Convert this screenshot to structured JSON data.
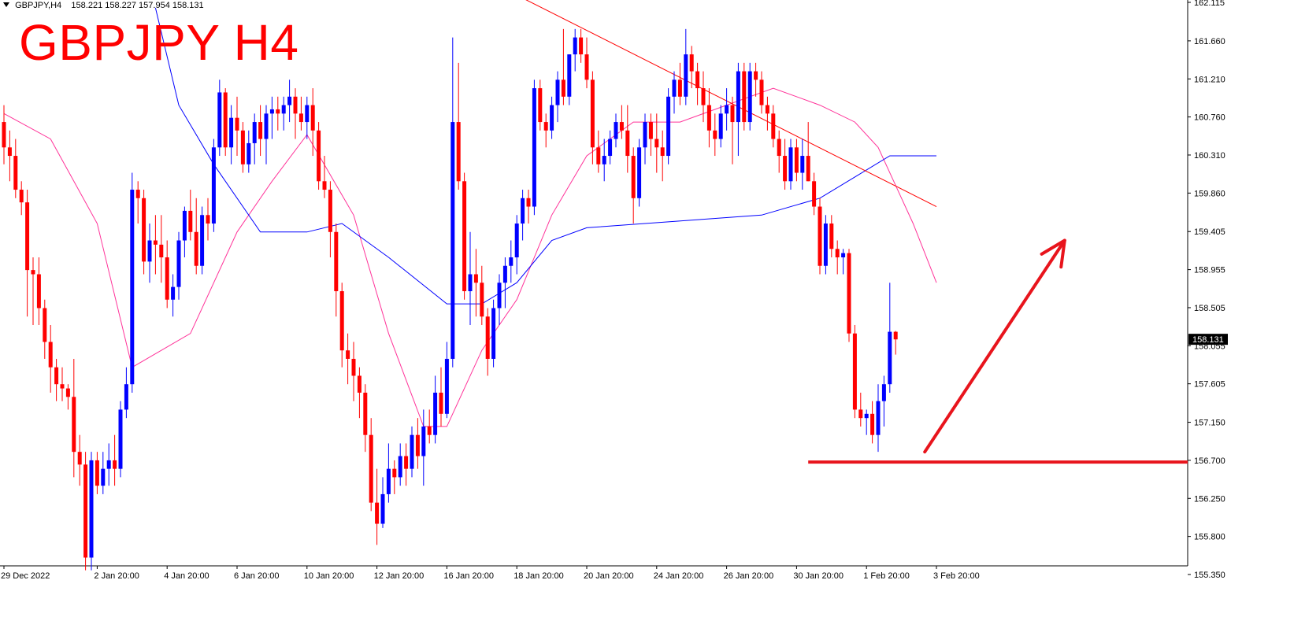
{
  "header": {
    "symbol_info": "GBPJPY,H4",
    "ohlc": "158.221 158.227 157.954 158.131",
    "title": "GBPJPY H4"
  },
  "colors": {
    "bull": "#0000ff",
    "bear": "#ff0000",
    "ma_fast": "#ff3399",
    "ma_slow": "#0000ff",
    "trendline": "#ff0000",
    "annotation": "#e8141c",
    "grid": "#000000"
  },
  "chart_data": {
    "type": "candlestick",
    "timeframe": "H4",
    "y_ticks": [
      "155.350",
      "155.800",
      "156.250",
      "156.700",
      "157.150",
      "157.605",
      "158.055",
      "158.505",
      "158.955",
      "159.405",
      "159.860",
      "160.310",
      "160.760",
      "161.210",
      "161.660",
      "162.115"
    ],
    "ylim": [
      155.2,
      162.2
    ],
    "x_ticks": [
      "29 Dec 2022",
      "2 Jan 20:00",
      "4 Jan 20:00",
      "6 Jan 20:00",
      "10 Jan 20:00",
      "12 Jan 20:00",
      "16 Jan 20:00",
      "18 Jan 20:00",
      "20 Jan 20:00",
      "24 Jan 20:00",
      "26 Jan 20:00",
      "30 Jan 20:00",
      "1 Feb 20:00",
      "3 Feb 20:00"
    ],
    "current_price": "158.131",
    "horizontal_level": 156.68,
    "candles": [
      [
        160.7,
        160.9,
        160.2,
        160.4
      ],
      [
        160.4,
        160.6,
        160.0,
        160.3
      ],
      [
        160.3,
        160.5,
        159.8,
        159.9
      ],
      [
        159.9,
        160.0,
        159.6,
        159.75
      ],
      [
        159.75,
        159.9,
        158.4,
        158.95
      ],
      [
        158.95,
        159.1,
        158.3,
        158.9
      ],
      [
        158.9,
        159.1,
        158.3,
        158.5
      ],
      [
        158.5,
        158.6,
        157.9,
        158.1
      ],
      [
        158.1,
        158.3,
        157.5,
        157.8
      ],
      [
        157.8,
        157.9,
        157.4,
        157.6
      ],
      [
        157.6,
        157.8,
        157.4,
        157.55
      ],
      [
        157.55,
        157.6,
        157.3,
        157.45
      ],
      [
        157.45,
        157.9,
        156.5,
        156.8
      ],
      [
        156.8,
        157.0,
        156.4,
        156.65
      ],
      [
        156.65,
        156.8,
        155.4,
        155.55
      ],
      [
        155.55,
        156.8,
        155.4,
        156.7
      ],
      [
        156.7,
        156.8,
        156.3,
        156.4
      ],
      [
        156.4,
        156.8,
        156.3,
        156.6
      ],
      [
        156.6,
        156.9,
        156.4,
        156.7
      ],
      [
        156.7,
        157.0,
        156.4,
        156.6
      ],
      [
        156.6,
        157.4,
        156.5,
        157.3
      ],
      [
        157.3,
        157.8,
        157.2,
        157.6
      ],
      [
        157.6,
        160.1,
        157.5,
        159.9
      ],
      [
        159.9,
        160.0,
        159.5,
        159.8
      ],
      [
        159.8,
        159.9,
        158.9,
        159.05
      ],
      [
        159.05,
        159.5,
        158.8,
        159.3
      ],
      [
        159.3,
        159.6,
        158.9,
        159.25
      ],
      [
        159.25,
        159.6,
        158.8,
        159.1
      ],
      [
        159.1,
        159.3,
        158.5,
        158.6
      ],
      [
        158.6,
        158.9,
        158.4,
        158.75
      ],
      [
        158.75,
        159.4,
        158.6,
        159.3
      ],
      [
        159.3,
        159.7,
        159.1,
        159.65
      ],
      [
        159.65,
        159.9,
        159.3,
        159.4
      ],
      [
        159.4,
        159.8,
        158.9,
        159.0
      ],
      [
        159.0,
        159.7,
        158.9,
        159.6
      ],
      [
        159.6,
        159.8,
        159.3,
        159.5
      ],
      [
        159.5,
        160.5,
        159.4,
        160.4
      ],
      [
        160.4,
        161.2,
        160.3,
        161.05
      ],
      [
        161.05,
        161.1,
        160.3,
        160.4
      ],
      [
        160.4,
        160.9,
        160.2,
        160.75
      ],
      [
        160.75,
        161.0,
        160.3,
        160.6
      ],
      [
        160.6,
        160.7,
        160.1,
        160.2
      ],
      [
        160.2,
        160.6,
        160.1,
        160.45
      ],
      [
        160.45,
        160.8,
        160.2,
        160.7
      ],
      [
        160.7,
        160.9,
        160.3,
        160.5
      ],
      [
        160.5,
        160.9,
        160.2,
        160.8
      ],
      [
        160.8,
        161.0,
        160.5,
        160.85
      ],
      [
        160.85,
        161.0,
        160.6,
        160.8
      ],
      [
        160.8,
        161.0,
        160.6,
        160.9
      ],
      [
        160.9,
        161.2,
        160.7,
        161.0
      ],
      [
        161.0,
        161.1,
        160.5,
        160.8
      ],
      [
        160.8,
        161.0,
        160.6,
        160.7
      ],
      [
        160.7,
        161.0,
        160.5,
        160.9
      ],
      [
        160.9,
        161.1,
        160.3,
        160.6
      ],
      [
        160.6,
        160.7,
        159.9,
        160.0
      ],
      [
        160.0,
        160.3,
        159.8,
        159.9
      ],
      [
        159.9,
        160.0,
        159.1,
        159.4
      ],
      [
        159.4,
        159.5,
        158.4,
        158.7
      ],
      [
        158.7,
        158.8,
        157.8,
        158.0
      ],
      [
        158.0,
        158.2,
        157.6,
        157.9
      ],
      [
        157.9,
        158.1,
        157.4,
        157.7
      ],
      [
        157.7,
        157.8,
        157.2,
        157.5
      ],
      [
        157.5,
        157.6,
        156.8,
        157.0
      ],
      [
        157.0,
        157.2,
        156.1,
        156.2
      ],
      [
        156.2,
        156.6,
        155.7,
        155.95
      ],
      [
        155.95,
        156.5,
        155.9,
        156.3
      ],
      [
        156.3,
        156.9,
        156.2,
        156.6
      ],
      [
        156.6,
        156.7,
        156.3,
        156.5
      ],
      [
        156.5,
        156.9,
        156.4,
        156.75
      ],
      [
        156.75,
        156.9,
        156.4,
        156.6
      ],
      [
        156.6,
        157.1,
        156.5,
        157.0
      ],
      [
        157.0,
        157.2,
        156.6,
        156.75
      ],
      [
        156.75,
        157.3,
        156.4,
        157.1
      ],
      [
        157.1,
        157.3,
        156.9,
        157.0
      ],
      [
        157.0,
        157.7,
        156.9,
        157.5
      ],
      [
        157.5,
        157.8,
        157.1,
        157.25
      ],
      [
        157.25,
        158.1,
        157.2,
        157.9
      ],
      [
        157.9,
        161.7,
        157.8,
        160.7
      ],
      [
        160.7,
        161.4,
        159.9,
        160.0
      ],
      [
        160.0,
        160.1,
        158.6,
        158.7
      ],
      [
        158.7,
        159.4,
        158.3,
        158.9
      ],
      [
        158.9,
        159.2,
        158.4,
        158.8
      ],
      [
        158.8,
        159.0,
        158.3,
        158.4
      ],
      [
        158.4,
        158.5,
        157.7,
        157.9
      ],
      [
        157.9,
        158.6,
        157.8,
        158.5
      ],
      [
        158.5,
        158.9,
        158.3,
        158.8
      ],
      [
        158.8,
        159.1,
        158.5,
        159.0
      ],
      [
        159.0,
        159.3,
        158.8,
        159.1
      ],
      [
        159.1,
        159.6,
        158.9,
        159.5
      ],
      [
        159.5,
        159.9,
        159.3,
        159.8
      ],
      [
        159.8,
        159.9,
        159.5,
        159.7
      ],
      [
        159.7,
        161.2,
        159.6,
        161.1
      ],
      [
        161.1,
        161.2,
        160.6,
        160.7
      ],
      [
        160.7,
        160.8,
        160.4,
        160.6
      ],
      [
        160.6,
        161.0,
        160.5,
        160.9
      ],
      [
        160.9,
        161.3,
        160.7,
        161.2
      ],
      [
        161.2,
        161.8,
        160.9,
        161.0
      ],
      [
        161.0,
        161.5,
        160.9,
        161.5
      ],
      [
        161.5,
        161.8,
        161.3,
        161.7
      ],
      [
        161.7,
        161.8,
        161.4,
        161.5
      ],
      [
        161.5,
        161.7,
        161.1,
        161.2
      ],
      [
        161.2,
        161.3,
        160.2,
        160.4
      ],
      [
        160.4,
        160.6,
        160.1,
        160.2
      ],
      [
        160.2,
        160.5,
        160.0,
        160.3
      ],
      [
        160.3,
        160.6,
        160.2,
        160.5
      ],
      [
        160.5,
        160.8,
        160.4,
        160.7
      ],
      [
        160.7,
        160.9,
        160.5,
        160.6
      ],
      [
        160.6,
        160.9,
        160.1,
        160.3
      ],
      [
        160.3,
        160.4,
        159.5,
        159.8
      ],
      [
        159.8,
        160.5,
        159.7,
        160.4
      ],
      [
        160.4,
        160.8,
        160.2,
        160.7
      ],
      [
        160.7,
        160.8,
        160.3,
        160.5
      ],
      [
        160.5,
        160.8,
        160.1,
        160.4
      ],
      [
        160.4,
        160.6,
        160.0,
        160.3
      ],
      [
        160.3,
        161.1,
        160.2,
        161.0
      ],
      [
        161.0,
        161.3,
        160.8,
        161.2
      ],
      [
        161.2,
        161.4,
        160.9,
        161.0
      ],
      [
        161.0,
        161.8,
        160.9,
        161.5
      ],
      [
        161.5,
        161.6,
        161.1,
        161.3
      ],
      [
        161.3,
        161.4,
        160.9,
        161.1
      ],
      [
        161.1,
        161.3,
        160.7,
        160.9
      ],
      [
        160.9,
        161.1,
        160.4,
        160.6
      ],
      [
        160.6,
        160.8,
        160.3,
        160.5
      ],
      [
        160.5,
        160.9,
        160.4,
        160.8
      ],
      [
        160.8,
        161.1,
        160.6,
        160.9
      ],
      [
        160.9,
        161.0,
        160.2,
        160.7
      ],
      [
        160.7,
        161.4,
        160.3,
        161.3
      ],
      [
        161.3,
        161.4,
        160.6,
        160.7
      ],
      [
        160.7,
        161.4,
        160.6,
        161.3
      ],
      [
        161.3,
        161.4,
        161.0,
        161.2
      ],
      [
        161.2,
        161.3,
        160.8,
        160.9
      ],
      [
        160.9,
        161.0,
        160.6,
        160.8
      ],
      [
        160.8,
        160.9,
        160.4,
        160.5
      ],
      [
        160.5,
        160.6,
        160.1,
        160.3
      ],
      [
        160.3,
        160.5,
        159.9,
        160.0
      ],
      [
        160.0,
        160.5,
        159.9,
        160.4
      ],
      [
        160.4,
        160.5,
        160.0,
        160.1
      ],
      [
        160.1,
        160.5,
        159.9,
        160.3
      ],
      [
        160.3,
        160.7,
        160.0,
        160.0
      ],
      [
        160.0,
        160.1,
        159.6,
        159.7
      ],
      [
        159.7,
        159.8,
        158.9,
        159.0
      ],
      [
        159.0,
        159.6,
        158.9,
        159.5
      ],
      [
        159.5,
        159.6,
        159.1,
        159.2
      ],
      [
        159.2,
        159.3,
        158.9,
        159.1
      ],
      [
        159.1,
        159.2,
        158.9,
        159.15
      ],
      [
        159.15,
        159.2,
        158.1,
        158.2
      ],
      [
        158.2,
        158.3,
        157.2,
        157.3
      ],
      [
        157.3,
        157.5,
        157.1,
        157.2
      ],
      [
        157.2,
        157.3,
        157.0,
        157.25
      ],
      [
        157.25,
        157.4,
        156.9,
        157.0
      ],
      [
        157.0,
        157.6,
        156.8,
        157.4
      ],
      [
        157.4,
        157.7,
        157.1,
        157.6
      ],
      [
        157.6,
        158.8,
        157.5,
        158.22
      ],
      [
        158.22,
        158.23,
        157.95,
        158.13
      ]
    ],
    "ma_fast": [
      [
        0,
        160.8
      ],
      [
        8,
        160.5
      ],
      [
        16,
        159.5
      ],
      [
        22,
        157.8
      ],
      [
        32,
        158.2
      ],
      [
        40,
        159.4
      ],
      [
        46,
        160.0
      ],
      [
        52,
        160.55
      ],
      [
        60,
        159.6
      ],
      [
        66,
        158.2
      ],
      [
        72,
        157.1
      ],
      [
        76,
        157.1
      ],
      [
        82,
        158.0
      ],
      [
        88,
        158.6
      ],
      [
        94,
        159.6
      ],
      [
        100,
        160.3
      ],
      [
        108,
        160.7
      ],
      [
        116,
        160.7
      ],
      [
        124,
        160.9
      ],
      [
        132,
        161.1
      ],
      [
        140,
        160.9
      ],
      [
        146,
        160.7
      ],
      [
        150,
        160.4
      ],
      [
        156,
        159.5
      ],
      [
        160,
        158.8
      ]
    ],
    "ma_slow": [
      [
        26,
        162.05
      ],
      [
        30,
        160.9
      ],
      [
        36,
        160.2
      ],
      [
        44,
        159.4
      ],
      [
        52,
        159.4
      ],
      [
        58,
        159.5
      ],
      [
        66,
        159.1
      ],
      [
        76,
        158.55
      ],
      [
        82,
        158.55
      ],
      [
        88,
        158.8
      ],
      [
        94,
        159.3
      ],
      [
        100,
        159.45
      ],
      [
        110,
        159.5
      ],
      [
        120,
        159.55
      ],
      [
        130,
        159.6
      ],
      [
        140,
        159.8
      ],
      [
        146,
        160.05
      ],
      [
        152,
        160.3
      ],
      [
        160,
        160.3
      ]
    ],
    "trendline": {
      "from": [
        88,
        162.2
      ],
      "to": [
        160,
        159.7
      ]
    },
    "annotation_arrow": {
      "from": [
        158,
        156.8
      ],
      "to": [
        182,
        159.3
      ]
    }
  }
}
